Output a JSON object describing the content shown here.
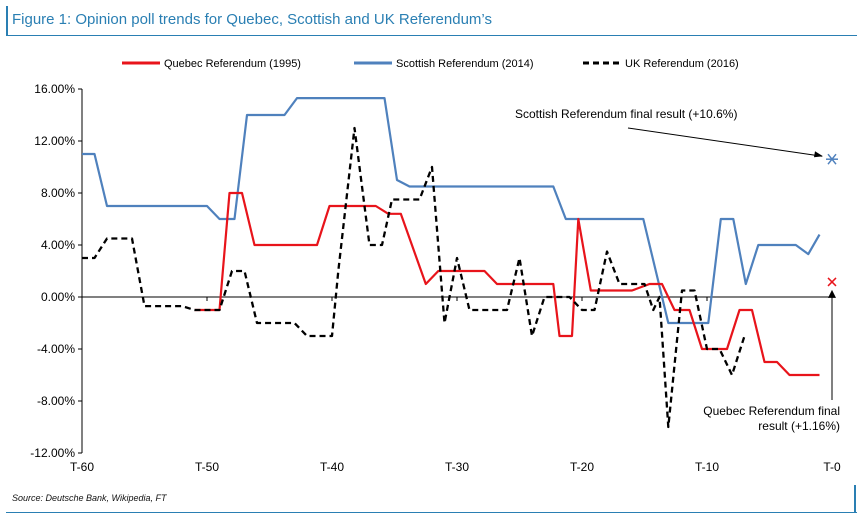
{
  "title": "Figure 1: Opinion poll trends for Quebec, Scottish and UK Referendum’s",
  "source": "Source: Deutsche Bank, Wikipedia, FT",
  "chart_data": {
    "type": "line",
    "xlabel": "",
    "ylabel": "",
    "x_range": [
      -60,
      0
    ],
    "x_ticks": [
      -60,
      -50,
      -40,
      -30,
      -20,
      -10,
      0
    ],
    "x_tick_labels": [
      "T-60",
      "T-50",
      "T-40",
      "T-30",
      "T-20",
      "T-10",
      "T-0"
    ],
    "ylim": [
      -12,
      16
    ],
    "y_ticks": [
      16,
      12,
      8,
      4,
      0,
      -4,
      -8,
      -12
    ],
    "y_tick_labels": [
      "16.00%",
      "12.00%",
      "8.00%",
      "4.00%",
      "0.00%",
      "-4.00%",
      "-8.00%",
      "-12.00%"
    ],
    "grid": false,
    "legend_position": "top",
    "series": [
      {
        "name": "Quebec Referendum (1995)",
        "color": "#e8141b",
        "dash": "solid",
        "points": [
          [
            -51,
            -1
          ],
          [
            -49,
            -1
          ],
          [
            -48.2,
            8
          ],
          [
            -47.2,
            8
          ],
          [
            -46.2,
            4
          ],
          [
            -41.2,
            4
          ],
          [
            -40.2,
            7
          ],
          [
            -36.5,
            7
          ],
          [
            -35.5,
            6.4
          ],
          [
            -34.5,
            6.4
          ],
          [
            -32.5,
            1
          ],
          [
            -31.5,
            2
          ],
          [
            -27.8,
            2
          ],
          [
            -26.8,
            1
          ],
          [
            -22.3,
            1
          ],
          [
            -21.8,
            -3
          ],
          [
            -20.8,
            -3
          ],
          [
            -20.3,
            6
          ],
          [
            -19.3,
            0.5
          ],
          [
            -16,
            0.5
          ],
          [
            -14.6,
            1
          ],
          [
            -13.6,
            1
          ],
          [
            -12.6,
            -1
          ],
          [
            -11.4,
            -1
          ],
          [
            -10.4,
            -4
          ],
          [
            -8.4,
            -4
          ],
          [
            -7.4,
            -1
          ],
          [
            -6.4,
            -1
          ],
          [
            -5.4,
            -5
          ],
          [
            -4.4,
            -5
          ],
          [
            -3.4,
            -6
          ],
          [
            -1,
            -6
          ]
        ]
      },
      {
        "name": "Scottish Referendum (2014)",
        "color": "#4f81bd",
        "dash": "solid",
        "points": [
          [
            -60,
            11
          ],
          [
            -59,
            11
          ],
          [
            -58,
            7
          ],
          [
            -50,
            7
          ],
          [
            -49,
            6
          ],
          [
            -47.8,
            6
          ],
          [
            -46.8,
            14
          ],
          [
            -43.8,
            14
          ],
          [
            -42.8,
            15.3
          ],
          [
            -35.8,
            15.3
          ],
          [
            -34.8,
            9
          ],
          [
            -33.8,
            8.5
          ],
          [
            -22.3,
            8.5
          ],
          [
            -21.3,
            6
          ],
          [
            -15.1,
            6
          ],
          [
            -14.1,
            2
          ],
          [
            -13.1,
            -2
          ],
          [
            -9.9,
            -2
          ],
          [
            -8.9,
            6
          ],
          [
            -7.9,
            6
          ],
          [
            -6.9,
            1
          ],
          [
            -5.9,
            4
          ],
          [
            -2.9,
            4
          ],
          [
            -1.9,
            3.3
          ],
          [
            -1,
            4.8
          ]
        ]
      },
      {
        "name": "UK Referendum (2016)",
        "color": "#000000",
        "dash": "dashed",
        "points": [
          [
            -60,
            3
          ],
          [
            -59,
            3
          ],
          [
            -58,
            4.5
          ],
          [
            -56,
            4.5
          ],
          [
            -55,
            -0.7
          ],
          [
            -52,
            -0.7
          ],
          [
            -51,
            -1
          ],
          [
            -49,
            -1
          ],
          [
            -48,
            2
          ],
          [
            -47,
            2
          ],
          [
            -46,
            -2
          ],
          [
            -43,
            -2
          ],
          [
            -42,
            -3
          ],
          [
            -40,
            -3
          ],
          [
            -39.5,
            2
          ],
          [
            -38.2,
            13
          ],
          [
            -37,
            4
          ],
          [
            -36,
            4
          ],
          [
            -35.2,
            7.5
          ],
          [
            -33,
            7.5
          ],
          [
            -32,
            10
          ],
          [
            -31,
            -2
          ],
          [
            -30,
            3
          ],
          [
            -29,
            -1
          ],
          [
            -26,
            -1
          ],
          [
            -25,
            3
          ],
          [
            -24,
            -3
          ],
          [
            -23,
            0
          ],
          [
            -21,
            0
          ],
          [
            -20,
            -1
          ],
          [
            -19,
            -1
          ],
          [
            -18,
            3.5
          ],
          [
            -17,
            1
          ],
          [
            -15,
            1
          ],
          [
            -14.3,
            -1
          ],
          [
            -13.8,
            0
          ],
          [
            -13.1,
            -10
          ],
          [
            -12,
            0.5
          ],
          [
            -11,
            0.5
          ],
          [
            -10,
            -4
          ],
          [
            -9,
            -4
          ],
          [
            -8,
            -6
          ],
          [
            -7,
            -3
          ]
        ]
      }
    ],
    "markers": [
      {
        "label": "Scottish Referendum final result (+10.6%)",
        "x": 0,
        "y": 10.6,
        "symbol": "asterisk",
        "color": "#4f81bd"
      },
      {
        "label_lines": [
          "Quebec Referendum final",
          "result (+1.16%)"
        ],
        "x": 0,
        "y": 1.16,
        "symbol": "x",
        "color": "#e8141b"
      }
    ]
  }
}
